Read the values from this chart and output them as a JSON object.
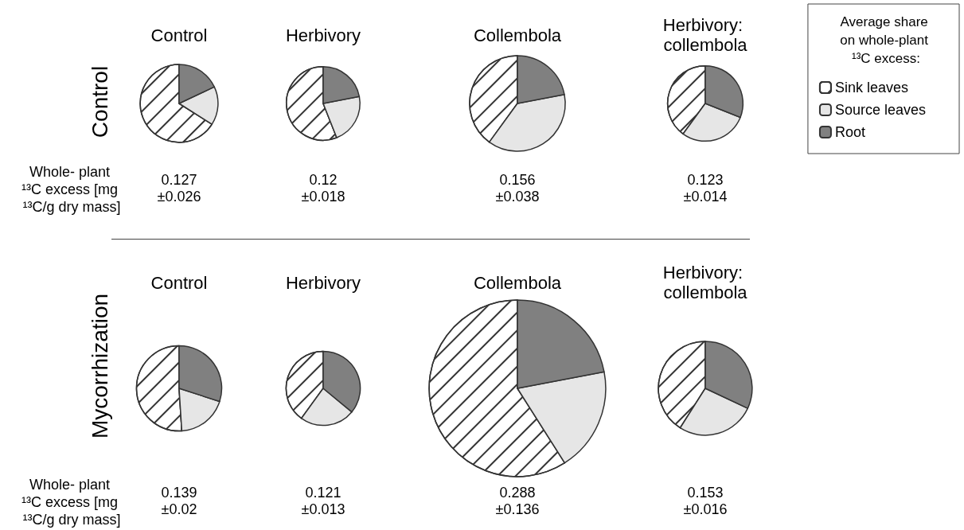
{
  "chart_data": [
    {
      "type": "pie",
      "title": "Control",
      "ylabel": "Control",
      "categories": [
        "Sink leaves",
        "Source leaves",
        "Root"
      ],
      "values": [
        66,
        16,
        18
      ],
      "colors": [
        "#ffffff",
        "#e6e6e6",
        "#808080"
      ],
      "legend": "right",
      "legend_title": "Average share on whole-plant ¹³C excess:",
      "annotations": [
        "0.127",
        "±0.026",
        "Whole- plant ¹³C excess [mg ¹³C/g dry mass]"
      ]
    },
    {
      "type": "pie",
      "title": "Herbivory",
      "categories": [
        null,
        null,
        null
      ],
      "values": [
        56,
        22,
        22
      ],
      "colors": [
        "#ffffff",
        "#e6e6e6",
        "#808080"
      ],
      "annotations": [
        "0.12",
        "±0.018"
      ]
    },
    {
      "type": "pie",
      "title": "Collembola",
      "categories": [
        null,
        null,
        null
      ],
      "values": [
        40,
        38,
        22
      ],
      "colors": [
        "#ffffff",
        "#e6e6e6",
        "#808080"
      ],
      "annotations": [
        "0.156",
        "±0.038"
      ]
    },
    {
      "type": "pie",
      "title": "Herbivory: collembola",
      "categories": [
        null,
        null,
        null
      ],
      "values": [
        40,
        29,
        31
      ],
      "colors": [
        "#ffffff",
        "#e6e6e6",
        "#808080"
      ],
      "annotations": [
        "0.123",
        "±0.014"
      ]
    },
    {
      "type": "pie",
      "title": "Control",
      "ylabel": "Mycorrhization",
      "categories": [
        null,
        null,
        null
      ],
      "values": [
        51,
        19,
        30
      ],
      "colors": [
        "#ffffff",
        "#e6e6e6",
        "#808080"
      ],
      "annotations": [
        "0.139",
        "±0.02",
        "Whole- plant ¹³C excess [mg ¹³C/g dry mass]"
      ]
    },
    {
      "type": "pie",
      "title": "Herbivory",
      "categories": [
        null,
        null,
        null
      ],
      "values": [
        40,
        24,
        36
      ],
      "colors": [
        "#ffffff",
        "#e6e6e6",
        "#808080"
      ],
      "annotations": [
        "0.121",
        "±0.013"
      ]
    },
    {
      "type": "pie",
      "title": "Collembola",
      "categories": [
        null,
        null,
        null
      ],
      "values": [
        59,
        19,
        22
      ],
      "colors": [
        "#ffffff",
        "#e6e6e6",
        "#808080"
      ],
      "annotations": [
        "0.288",
        "±0.136"
      ]
    },
    {
      "type": "pie",
      "title": "Herbivory: collembola",
      "categories": [
        null,
        null,
        null
      ],
      "values": [
        41,
        27,
        32
      ],
      "colors": [
        "#ffffff",
        "#e6e6e6",
        "#808080"
      ],
      "annotations": [
        "0.153",
        "±0.016"
      ]
    }
  ]
}
